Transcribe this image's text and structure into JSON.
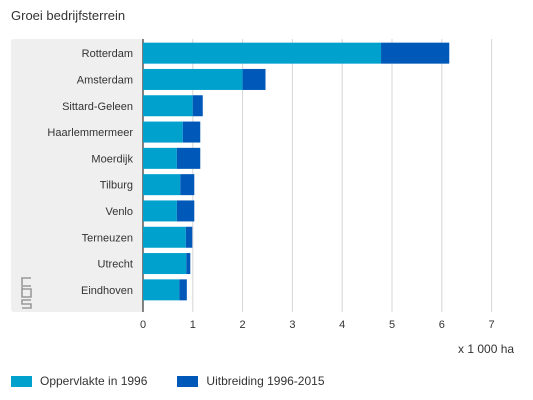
{
  "chart_data": {
    "type": "bar",
    "orientation": "horizontal",
    "stacked": true,
    "title": "Groei bedrijfsterrein",
    "xlabel": "x 1 000 ha",
    "ylabel": "",
    "xlim": [
      0,
      7
    ],
    "xticks": [
      "0",
      "1",
      "2",
      "3",
      "4",
      "5",
      "6",
      "7"
    ],
    "grid": true,
    "legend_position": "bottom-left",
    "categories": [
      "Rotterdam",
      "Amsterdam",
      "Sittard-Geleen",
      "Haarlemmermeer",
      "Moerdijk",
      "Tilburg",
      "Venlo",
      "Terneuzen",
      "Utrecht",
      "Eindhoven"
    ],
    "series": [
      {
        "name": "Oppervlakte in 1996",
        "color": "#00a1cd",
        "values": [
          4.78,
          2.0,
          1.0,
          0.8,
          0.68,
          0.75,
          0.68,
          0.86,
          0.87,
          0.73
        ]
      },
      {
        "name": "Uitbreiding 1996-2015",
        "color": "#0058b8",
        "values": [
          1.37,
          0.46,
          0.2,
          0.35,
          0.47,
          0.28,
          0.35,
          0.13,
          0.08,
          0.15
        ]
      }
    ]
  },
  "logo_icon": "cbs-logo-icon"
}
